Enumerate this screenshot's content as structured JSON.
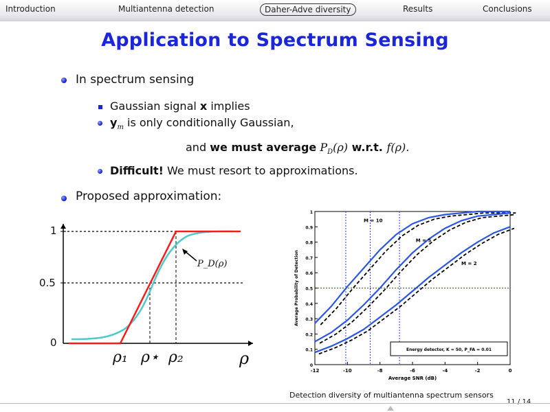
{
  "nav": {
    "items": [
      "Introduction",
      "Multiantenna detection",
      "Daher-Adve diversity",
      "Results",
      "Conclusions"
    ]
  },
  "slide": {
    "title": "Application to Spectrum Sensing",
    "b1": "In spectrum sensing",
    "s1_pre": "Gaussian signal ",
    "s1_bold": "x",
    "s1_post": " implies",
    "s2_bold": "y",
    "s2_sub": "m",
    "s2_post": " is only conditionally Gaussian,",
    "center_pre": "and ",
    "center_bold": "we must average",
    "center_math1": "P",
    "center_math1_sub": "D",
    "center_math1_arg": "(ρ)",
    "center_wrt": " w.r.t. ",
    "center_math2": "f(ρ).",
    "s3_bold": "Difficult!",
    "s3_post": " We must resort to approximations.",
    "b2": "Proposed approximation:"
  },
  "left_plot": {
    "y_ticks": [
      "1",
      "0.5",
      "0"
    ],
    "x_labels": [
      "ρ₁",
      "ρ⋆",
      "ρ₂",
      "ρ"
    ],
    "annotation": "P_D(ρ)",
    "colors": {
      "approx": "#ff1a1a",
      "exact": "#4fc9c9"
    }
  },
  "chart_data": {
    "type": "line",
    "xlabel": "Average SNR (dB)",
    "ylabel": "Average Probability of Detection",
    "xlim": [
      -12,
      0
    ],
    "ylim": [
      0,
      1
    ],
    "x_ticks": [
      "-12",
      "-10",
      "-8",
      "-6",
      "-4",
      "-2",
      "0"
    ],
    "y_ticks": [
      "0",
      "0.1",
      "0.2",
      "0.3",
      "0.4",
      "0.5",
      "0.6",
      "0.7",
      "0.8",
      "0.9",
      "1"
    ],
    "grid": false,
    "legend_text": "Energy detector, K = 50, P_FA = 0.01",
    "series": [
      {
        "name": "M = 10",
        "x": [
          -12,
          -11,
          -10,
          -9,
          -8,
          -7,
          -6,
          -5,
          -4,
          -3,
          -2,
          -1,
          0
        ],
        "values": [
          0.27,
          0.38,
          0.51,
          0.63,
          0.75,
          0.85,
          0.92,
          0.96,
          0.98,
          0.99,
          1.0,
          1.0,
          1.0
        ]
      },
      {
        "name": "M = 5",
        "x": [
          -12,
          -11,
          -10,
          -9,
          -8,
          -7,
          -6,
          -5,
          -4,
          -3,
          -2,
          -1,
          0
        ],
        "values": [
          0.15,
          0.21,
          0.29,
          0.39,
          0.5,
          0.62,
          0.73,
          0.82,
          0.89,
          0.94,
          0.97,
          0.98,
          0.99
        ]
      },
      {
        "name": "M = 2",
        "x": [
          -12,
          -11,
          -10,
          -9,
          -8,
          -7,
          -6,
          -5,
          -4,
          -3,
          -2,
          -1,
          0
        ],
        "values": [
          0.08,
          0.12,
          0.17,
          0.23,
          0.31,
          0.39,
          0.48,
          0.57,
          0.65,
          0.73,
          0.8,
          0.86,
          0.9
        ]
      }
    ],
    "labels": [
      "M = 10",
      "M = 5",
      "M = 2"
    ],
    "ref_lines": {
      "y": 0.5,
      "x": [
        -10.1,
        -8.6,
        -6.8
      ]
    }
  },
  "footer": {
    "title": "Detection diversity of multiantenna spectrum sensors",
    "page": "11 / 14"
  }
}
